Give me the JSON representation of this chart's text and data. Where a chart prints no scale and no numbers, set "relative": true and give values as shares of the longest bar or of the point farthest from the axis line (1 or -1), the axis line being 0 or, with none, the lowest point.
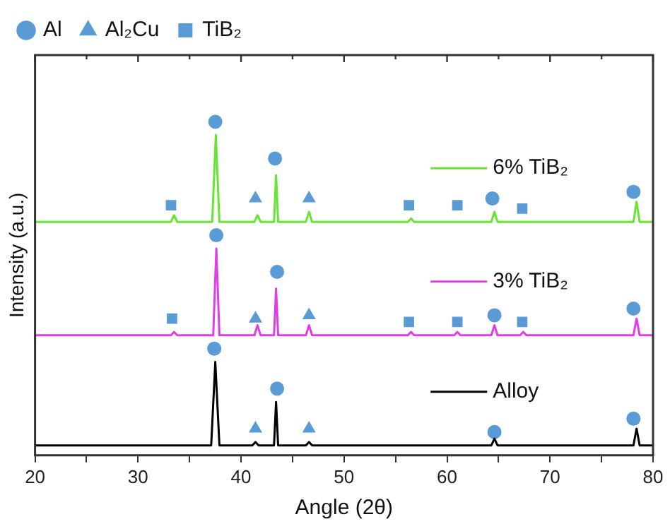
{
  "chart_data": {
    "type": "line",
    "relative": true,
    "xlabel": "Angle (2θ)",
    "ylabel": "Intensity (a.u.)",
    "xlim": [
      20,
      80
    ],
    "xticks": [
      20,
      {
        "value": 25,
        "label": null
      },
      30,
      {
        "value": 35,
        "label": null
      },
      40,
      {
        "value": 45,
        "label": null
      },
      50,
      {
        "value": 55,
        "label": null
      },
      60,
      {
        "value": 65,
        "label": null
      },
      70,
      {
        "value": 75,
        "label": null
      },
      80
    ],
    "grid": false,
    "legend": "top",
    "line_style": "solid",
    "series": [
      {
        "name": "6% TiB₂",
        "color": "#66e632",
        "x": [
          20,
          33.2,
          33.5,
          33.8,
          37.2,
          37.55,
          37.9,
          41.3,
          41.6,
          41.9,
          43.2,
          43.4,
          43.6,
          46.3,
          46.6,
          46.9,
          56.2,
          56.5,
          56.8,
          64.3,
          64.6,
          64.9,
          78.1,
          78.4,
          78.7,
          80
        ],
        "values": [
          0.7,
          0.7,
          0.72,
          0.7,
          0.7,
          0.96,
          0.7,
          0.7,
          0.72,
          0.7,
          0.7,
          0.84,
          0.7,
          0.7,
          0.73,
          0.7,
          0.7,
          0.71,
          0.7,
          0.7,
          0.73,
          0.7,
          0.7,
          0.76,
          0.7,
          0.7
        ]
      },
      {
        "name": "3% TiB₂",
        "color": "#e03ce8",
        "x": [
          20,
          33.2,
          33.5,
          33.8,
          37.3,
          37.6,
          37.9,
          41.3,
          41.6,
          41.9,
          43.2,
          43.4,
          43.6,
          46.3,
          46.6,
          46.9,
          56.2,
          56.5,
          56.8,
          60.7,
          61.0,
          61.3,
          64.3,
          64.6,
          64.9,
          67.1,
          67.4,
          67.7,
          78.1,
          78.4,
          78.7,
          80
        ],
        "values": [
          0.36,
          0.36,
          0.37,
          0.36,
          0.36,
          0.62,
          0.36,
          0.36,
          0.39,
          0.36,
          0.36,
          0.5,
          0.36,
          0.36,
          0.39,
          0.36,
          0.36,
          0.37,
          0.36,
          0.36,
          0.37,
          0.36,
          0.36,
          0.39,
          0.36,
          0.36,
          0.37,
          0.36,
          0.36,
          0.41,
          0.36,
          0.36
        ]
      },
      {
        "name": "Alloy",
        "color": "#000000",
        "x": [
          20,
          37.1,
          37.5,
          37.9,
          41.1,
          41.4,
          41.7,
          43.2,
          43.4,
          43.6,
          46.3,
          46.6,
          46.9,
          64.3,
          64.6,
          64.9,
          78.1,
          78.4,
          78.7,
          80
        ],
        "values": [
          0.03,
          0.03,
          0.28,
          0.03,
          0.03,
          0.04,
          0.03,
          0.03,
          0.16,
          0.03,
          0.03,
          0.04,
          0.03,
          0.03,
          0.05,
          0.03,
          0.03,
          0.08,
          0.03,
          0.03
        ]
      },
      {
        "name": "Al",
        "type": "scatter",
        "marker": "circle",
        "color": "#5b9bd5",
        "x": [
          37.5,
          43.3,
          64.4,
          78.1,
          37.6,
          43.5,
          64.6,
          78.1,
          37.4,
          43.5,
          64.6,
          78.1
        ],
        "values": [
          1.0,
          0.89,
          0.77,
          0.79,
          0.66,
          0.55,
          0.42,
          0.44,
          0.32,
          0.2,
          0.07,
          0.11
        ]
      },
      {
        "name": "Al₂Cu",
        "type": "scatter",
        "marker": "triangle",
        "color": "#5b9bd5",
        "x": [
          41.4,
          46.6,
          41.4,
          46.6,
          41.4,
          46.6
        ],
        "values": [
          0.77,
          0.77,
          0.41,
          0.42,
          0.08,
          0.08
        ]
      },
      {
        "name": "TiB₂",
        "type": "scatter",
        "marker": "square",
        "color": "#5b9bd5",
        "x": [
          33.2,
          56.3,
          61.0,
          67.3,
          33.3,
          56.3,
          61.0,
          67.3
        ],
        "values": [
          0.75,
          0.75,
          0.75,
          0.74,
          0.41,
          0.4,
          0.4,
          0.4
        ]
      }
    ]
  }
}
